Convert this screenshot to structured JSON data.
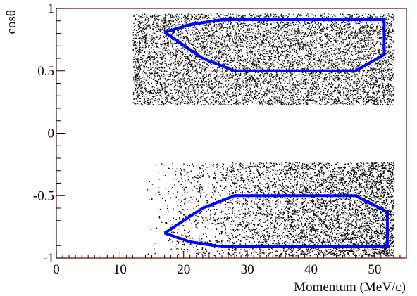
{
  "chart_data": {
    "type": "scatter",
    "title": "",
    "xlabel": "Momentum (MeV/c)",
    "ylabel": "cosθ",
    "xlim": [
      0,
      55
    ],
    "ylim": [
      -1,
      1
    ],
    "grid": false,
    "x_ticks": [
      {
        "value": 0,
        "label": "0"
      },
      {
        "value": 10,
        "label": "10"
      },
      {
        "value": 20,
        "label": "20"
      },
      {
        "value": 30,
        "label": "30"
      },
      {
        "value": 40,
        "label": "40"
      },
      {
        "value": 50,
        "label": "50"
      }
    ],
    "y_ticks": [
      {
        "value": -1,
        "label": "-1"
      },
      {
        "value": -0.5,
        "label": "-0.5"
      },
      {
        "value": 0,
        "label": "0"
      },
      {
        "value": 0.5,
        "label": "0.5"
      },
      {
        "value": 1,
        "label": "1"
      }
    ],
    "point_bands": [
      {
        "x_min": 12.0,
        "x_max": 53.0,
        "y_min": 0.23,
        "y_max": 0.96,
        "density": "uniform"
      },
      {
        "x_min": 14.0,
        "x_max": 53.0,
        "y_min": -0.98,
        "y_max": -0.23,
        "density": "increasing-with-momentum"
      }
    ],
    "selection_contours": [
      {
        "name": "",
        "color": "#0000ff",
        "points": [
          [
            17.0,
            0.81
          ],
          [
            21.0,
            0.87
          ],
          [
            26.0,
            0.91
          ],
          [
            51.5,
            0.91
          ],
          [
            51.5,
            0.63
          ],
          [
            47.0,
            0.5
          ],
          [
            28.0,
            0.5
          ],
          [
            23.0,
            0.6
          ],
          [
            17.0,
            0.81
          ]
        ]
      },
      {
        "name": "",
        "color": "#0000ff",
        "points": [
          [
            17.0,
            -0.8
          ],
          [
            21.0,
            -0.87
          ],
          [
            26.0,
            -0.91
          ],
          [
            52.0,
            -0.91
          ],
          [
            52.0,
            -0.63
          ],
          [
            47.0,
            -0.5
          ],
          [
            28.0,
            -0.5
          ],
          [
            23.0,
            -0.6
          ],
          [
            17.0,
            -0.8
          ]
        ]
      }
    ]
  },
  "colors": {
    "frame": "#6b0000",
    "points": "#000000",
    "contour": "#0000ff",
    "background": "#ffffff"
  }
}
